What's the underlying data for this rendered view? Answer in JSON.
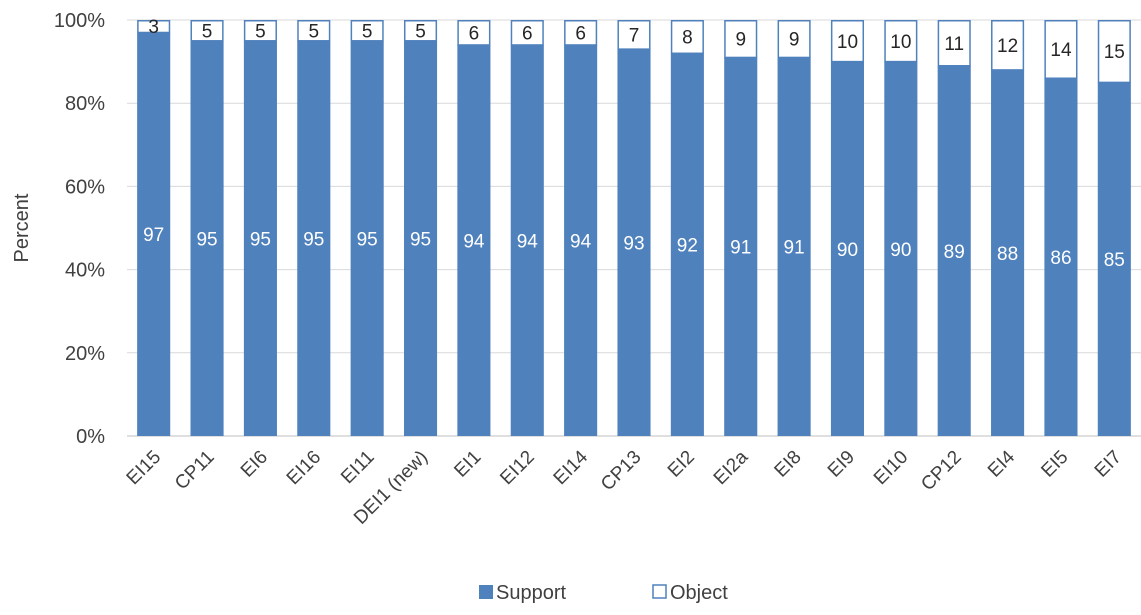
{
  "chart_data": {
    "type": "bar",
    "stacked": true,
    "title": "",
    "xlabel": "",
    "ylabel": "Percent",
    "ylim": [
      0,
      100
    ],
    "yticks": [
      "0%",
      "20%",
      "40%",
      "60%",
      "80%",
      "100%"
    ],
    "grid": true,
    "legend_position": "bottom",
    "categories": [
      "EI15",
      "CP11",
      "EI6",
      "EI16",
      "EI11",
      "DEI1 (new)",
      "EI1",
      "EI12",
      "EI14",
      "CP13",
      "EI2",
      "EI2a",
      "EI8",
      "EI9",
      "EI10",
      "CP12",
      "EI4",
      "EI5",
      "EI7"
    ],
    "series": [
      {
        "name": "Support",
        "color": "#4f81bd",
        "values": [
          97,
          95,
          95,
          95,
          95,
          95,
          94,
          94,
          94,
          93,
          92,
          91,
          91,
          90,
          90,
          89,
          88,
          86,
          85
        ]
      },
      {
        "name": "Object",
        "color": "#ffffff",
        "stroke": "#4f81bd",
        "values": [
          3,
          5,
          5,
          5,
          5,
          5,
          6,
          6,
          6,
          7,
          8,
          9,
          9,
          10,
          10,
          11,
          12,
          14,
          15
        ]
      }
    ]
  }
}
